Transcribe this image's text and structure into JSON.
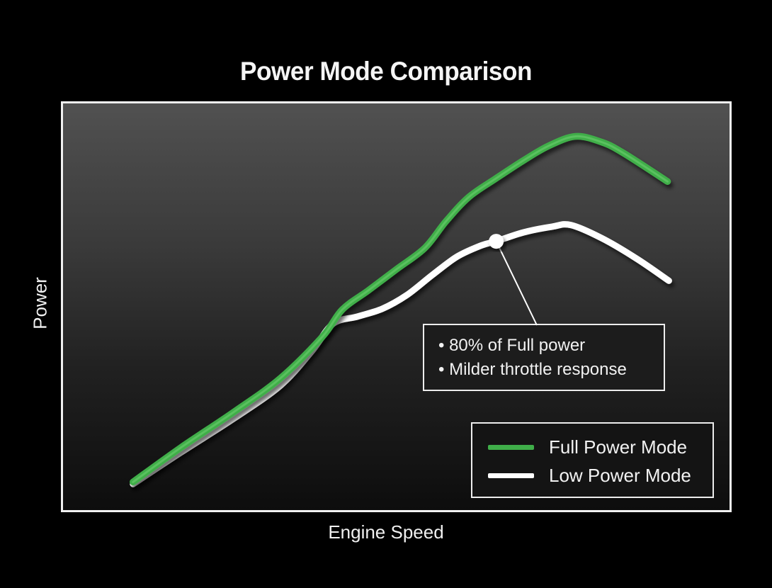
{
  "title": "Power Mode Comparison",
  "axes": {
    "x_label": "Engine Speed",
    "y_label": "Power"
  },
  "annotation": {
    "lines": [
      "• 80% of Full power",
      "• Milder throttle response"
    ]
  },
  "legend": {
    "items": [
      {
        "label": "Full Power Mode"
      },
      {
        "label": "Low Power Mode"
      }
    ]
  },
  "colors": {
    "background": "#000000",
    "plot_gradient_top": "#515151",
    "plot_gradient_bottom": "#0d0d0d",
    "full_power_line": "#3fae49",
    "full_power_highlight": "#7bd97a",
    "low_power_line": "#ffffff",
    "text": "#f2f2f2",
    "box_border": "#ededed"
  },
  "chart_data": {
    "type": "line",
    "title": "Power Mode Comparison",
    "xlabel": "Engine Speed",
    "ylabel": "Power",
    "x_range_pct": [
      0,
      100
    ],
    "y_range_pct": [
      0,
      100
    ],
    "grid": false,
    "axis_ticks": false,
    "legend_position": "lower-right",
    "series": [
      {
        "name": "Full Power Mode",
        "color": "#3fae49",
        "points": [
          [
            10.5,
            6.9
          ],
          [
            17.7,
            15.4
          ],
          [
            25.7,
            24.2
          ],
          [
            32.6,
            32.4
          ],
          [
            38.9,
            42.6
          ],
          [
            41.9,
            49.3
          ],
          [
            45.8,
            54.0
          ],
          [
            50.1,
            59.3
          ],
          [
            54.3,
            64.5
          ],
          [
            57.5,
            71.1
          ],
          [
            60.9,
            77.0
          ],
          [
            64.9,
            81.5
          ],
          [
            69.1,
            86.0
          ],
          [
            72.9,
            89.6
          ],
          [
            76.9,
            91.9
          ],
          [
            80.8,
            90.5
          ],
          [
            84.0,
            87.9
          ],
          [
            90.7,
            80.8
          ]
        ]
      },
      {
        "name": "Low Power Mode",
        "color": "#ffffff",
        "points": [
          [
            10.5,
            6.4
          ],
          [
            17.7,
            14.2
          ],
          [
            25.7,
            22.6
          ],
          [
            32.6,
            30.6
          ],
          [
            37.3,
            39.0
          ],
          [
            40.5,
            45.8
          ],
          [
            44.2,
            47.6
          ],
          [
            47.9,
            49.5
          ],
          [
            51.6,
            52.9
          ],
          [
            55.4,
            57.8
          ],
          [
            59.1,
            62.3
          ],
          [
            62.8,
            65.1
          ],
          [
            65.0,
            66.1
          ],
          [
            69.1,
            68.3
          ],
          [
            73.4,
            69.7
          ],
          [
            76.2,
            70.1
          ],
          [
            80.8,
            66.9
          ],
          [
            86.1,
            61.8
          ],
          [
            90.9,
            56.4
          ]
        ]
      }
    ],
    "marker": {
      "series": "Low Power Mode",
      "x": 65.0,
      "y": 66.1
    }
  }
}
